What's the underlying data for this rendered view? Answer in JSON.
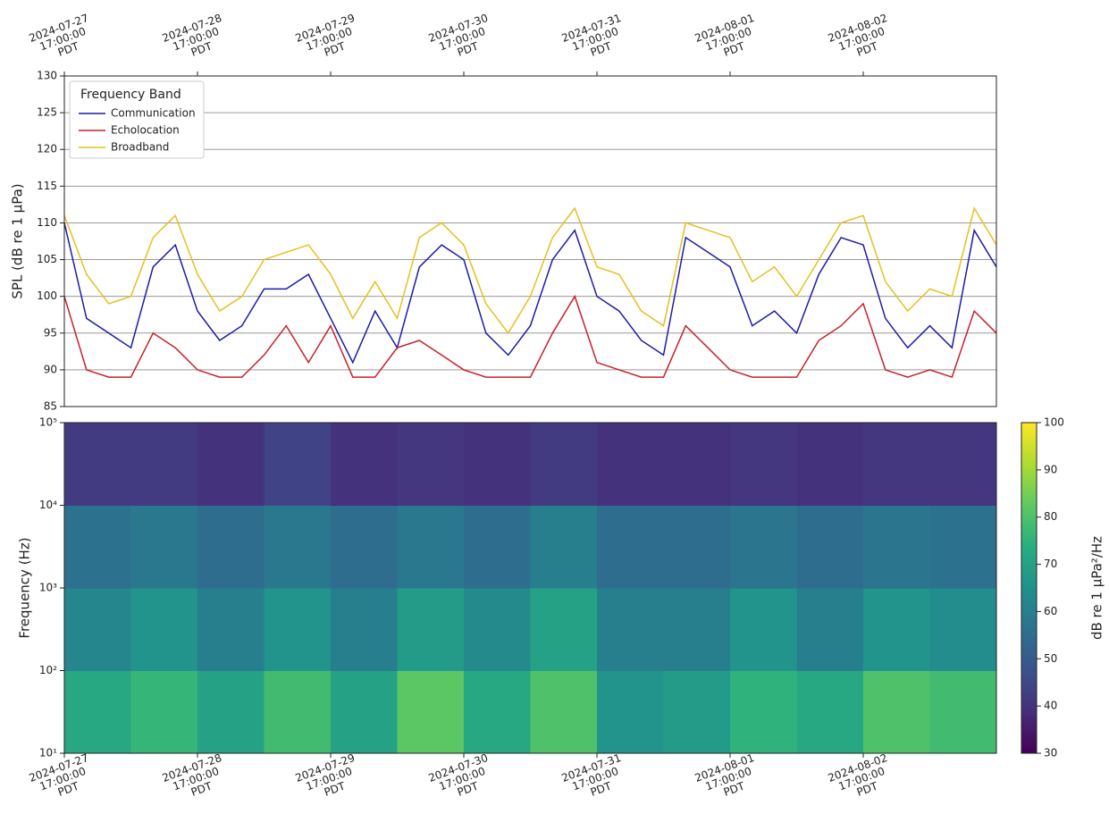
{
  "chart_data": [
    {
      "type": "line",
      "ylabel": "SPL (dB re 1 µPa)",
      "ylim": [
        85,
        130
      ],
      "yticks": [
        85,
        90,
        95,
        100,
        105,
        110,
        115,
        120,
        125,
        130
      ],
      "grid": true,
      "legend": {
        "title": "Frequency Band",
        "corner": "upper left"
      },
      "xlim": [
        "2024-07-27 17:00:00",
        "2024-08-03 17:00:00"
      ],
      "xticks": [
        "2024-07-27 17:00:00 PDT",
        "2024-07-28 17:00:00 PDT",
        "2024-07-29 17:00:00 PDT",
        "2024-07-30 17:00:00 PDT",
        "2024-07-31 17:00:00 PDT",
        "2024-08-01 17:00:00 PDT",
        "2024-08-02 17:00:00 PDT"
      ],
      "xtick_side": "top",
      "x": [
        "2024-07-27 17:00",
        "2024-07-27 21:00",
        "2024-07-28 01:00",
        "2024-07-28 05:00",
        "2024-07-28 09:00",
        "2024-07-28 13:00",
        "2024-07-28 17:00",
        "2024-07-28 21:00",
        "2024-07-29 01:00",
        "2024-07-29 05:00",
        "2024-07-29 09:00",
        "2024-07-29 13:00",
        "2024-07-29 17:00",
        "2024-07-29 21:00",
        "2024-07-30 01:00",
        "2024-07-30 05:00",
        "2024-07-30 09:00",
        "2024-07-30 13:00",
        "2024-07-30 17:00",
        "2024-07-30 21:00",
        "2024-07-31 01:00",
        "2024-07-31 05:00",
        "2024-07-31 09:00",
        "2024-07-31 13:00",
        "2024-07-31 17:00",
        "2024-07-31 21:00",
        "2024-08-01 01:00",
        "2024-08-01 05:00",
        "2024-08-01 09:00",
        "2024-08-01 13:00",
        "2024-08-01 17:00",
        "2024-08-01 21:00",
        "2024-08-02 01:00",
        "2024-08-02 05:00",
        "2024-08-02 09:00",
        "2024-08-02 13:00",
        "2024-08-02 17:00",
        "2024-08-02 21:00",
        "2024-08-03 01:00",
        "2024-08-03 05:00",
        "2024-08-03 09:00",
        "2024-08-03 13:00",
        "2024-08-03 17:00"
      ],
      "series": [
        {
          "name": "Communication",
          "color": "#1c1ca6",
          "values": [
            110,
            97,
            95,
            93,
            104,
            107,
            98,
            94,
            96,
            101,
            101,
            103,
            97,
            91,
            98,
            93,
            104,
            107,
            105,
            95,
            92,
            96,
            105,
            109,
            100,
            98,
            94,
            92,
            108,
            106,
            104,
            96,
            98,
            95,
            103,
            108,
            107,
            97,
            93,
            96,
            93,
            109,
            104
          ]
        },
        {
          "name": "Echolocation",
          "color": "#c8202a",
          "values": [
            100,
            90,
            89,
            89,
            95,
            93,
            90,
            89,
            89,
            92,
            96,
            91,
            96,
            89,
            89,
            93,
            94,
            92,
            90,
            89,
            89,
            89,
            95,
            100,
            91,
            90,
            89,
            89,
            96,
            93,
            90,
            89,
            89,
            89,
            94,
            96,
            99,
            90,
            89,
            90,
            89,
            98,
            95
          ]
        },
        {
          "name": "Broadband",
          "color": "#e6c01c",
          "values": [
            111,
            103,
            99,
            100,
            108,
            111,
            103,
            98,
            100,
            105,
            106,
            107,
            103,
            97,
            102,
            97,
            108,
            110,
            107,
            99,
            95,
            100,
            108,
            112,
            104,
            103,
            98,
            96,
            110,
            109,
            108,
            102,
            104,
            100,
            105,
            110,
            111,
            102,
            98,
            101,
            100,
            112,
            107
          ]
        }
      ]
    },
    {
      "type": "heatmap",
      "ylabel": "Frequency (Hz)",
      "log_y": true,
      "ylim": [
        10,
        100000
      ],
      "yticks": [
        {
          "value": 10,
          "label": "10¹"
        },
        {
          "value": 100,
          "label": "10²"
        },
        {
          "value": 1000,
          "label": "10³"
        },
        {
          "value": 10000,
          "label": "10⁴"
        },
        {
          "value": 100000,
          "label": "10⁵"
        }
      ],
      "xlim": [
        "2024-07-27 17:00:00",
        "2024-08-03 17:00:00"
      ],
      "xticks": [
        "2024-07-27 17:00:00 PDT",
        "2024-07-28 17:00:00 PDT",
        "2024-07-29 17:00:00 PDT",
        "2024-07-30 17:00:00 PDT",
        "2024-07-31 17:00:00 PDT",
        "2024-08-01 17:00:00 PDT",
        "2024-08-02 17:00:00 PDT"
      ],
      "xtick_side": "bottom",
      "x_edges": [
        "2024-07-27 17:00",
        "2024-07-28 05:00",
        "2024-07-28 17:00",
        "2024-07-29 05:00",
        "2024-07-29 17:00",
        "2024-07-30 05:00",
        "2024-07-30 17:00",
        "2024-07-31 05:00",
        "2024-07-31 17:00",
        "2024-08-01 05:00",
        "2024-08-01 17:00",
        "2024-08-02 05:00",
        "2024-08-02 17:00",
        "2024-08-03 05:00",
        "2024-08-03 17:00"
      ],
      "y_edges": [
        10,
        100,
        1000,
        10000,
        100000
      ],
      "values": [
        [
          72,
          76,
          70,
          78,
          70,
          82,
          72,
          80,
          66,
          68,
          75,
          72,
          80,
          78
        ],
        [
          62,
          66,
          60,
          66,
          60,
          68,
          63,
          70,
          60,
          60,
          66,
          60,
          66,
          64
        ],
        [
          56,
          58,
          55,
          58,
          55,
          58,
          55,
          60,
          55,
          55,
          57,
          55,
          57,
          56
        ],
        [
          42,
          42,
          40,
          44,
          40,
          41,
          40,
          42,
          40,
          40,
          41,
          40,
          41,
          41
        ]
      ],
      "colormap": "viridis",
      "clim": [
        30,
        100
      ],
      "colorbar_ticks": [
        30,
        40,
        50,
        60,
        70,
        80,
        90,
        100
      ],
      "colorbar_label": "dB re 1 µPa²/Hz"
    }
  ]
}
